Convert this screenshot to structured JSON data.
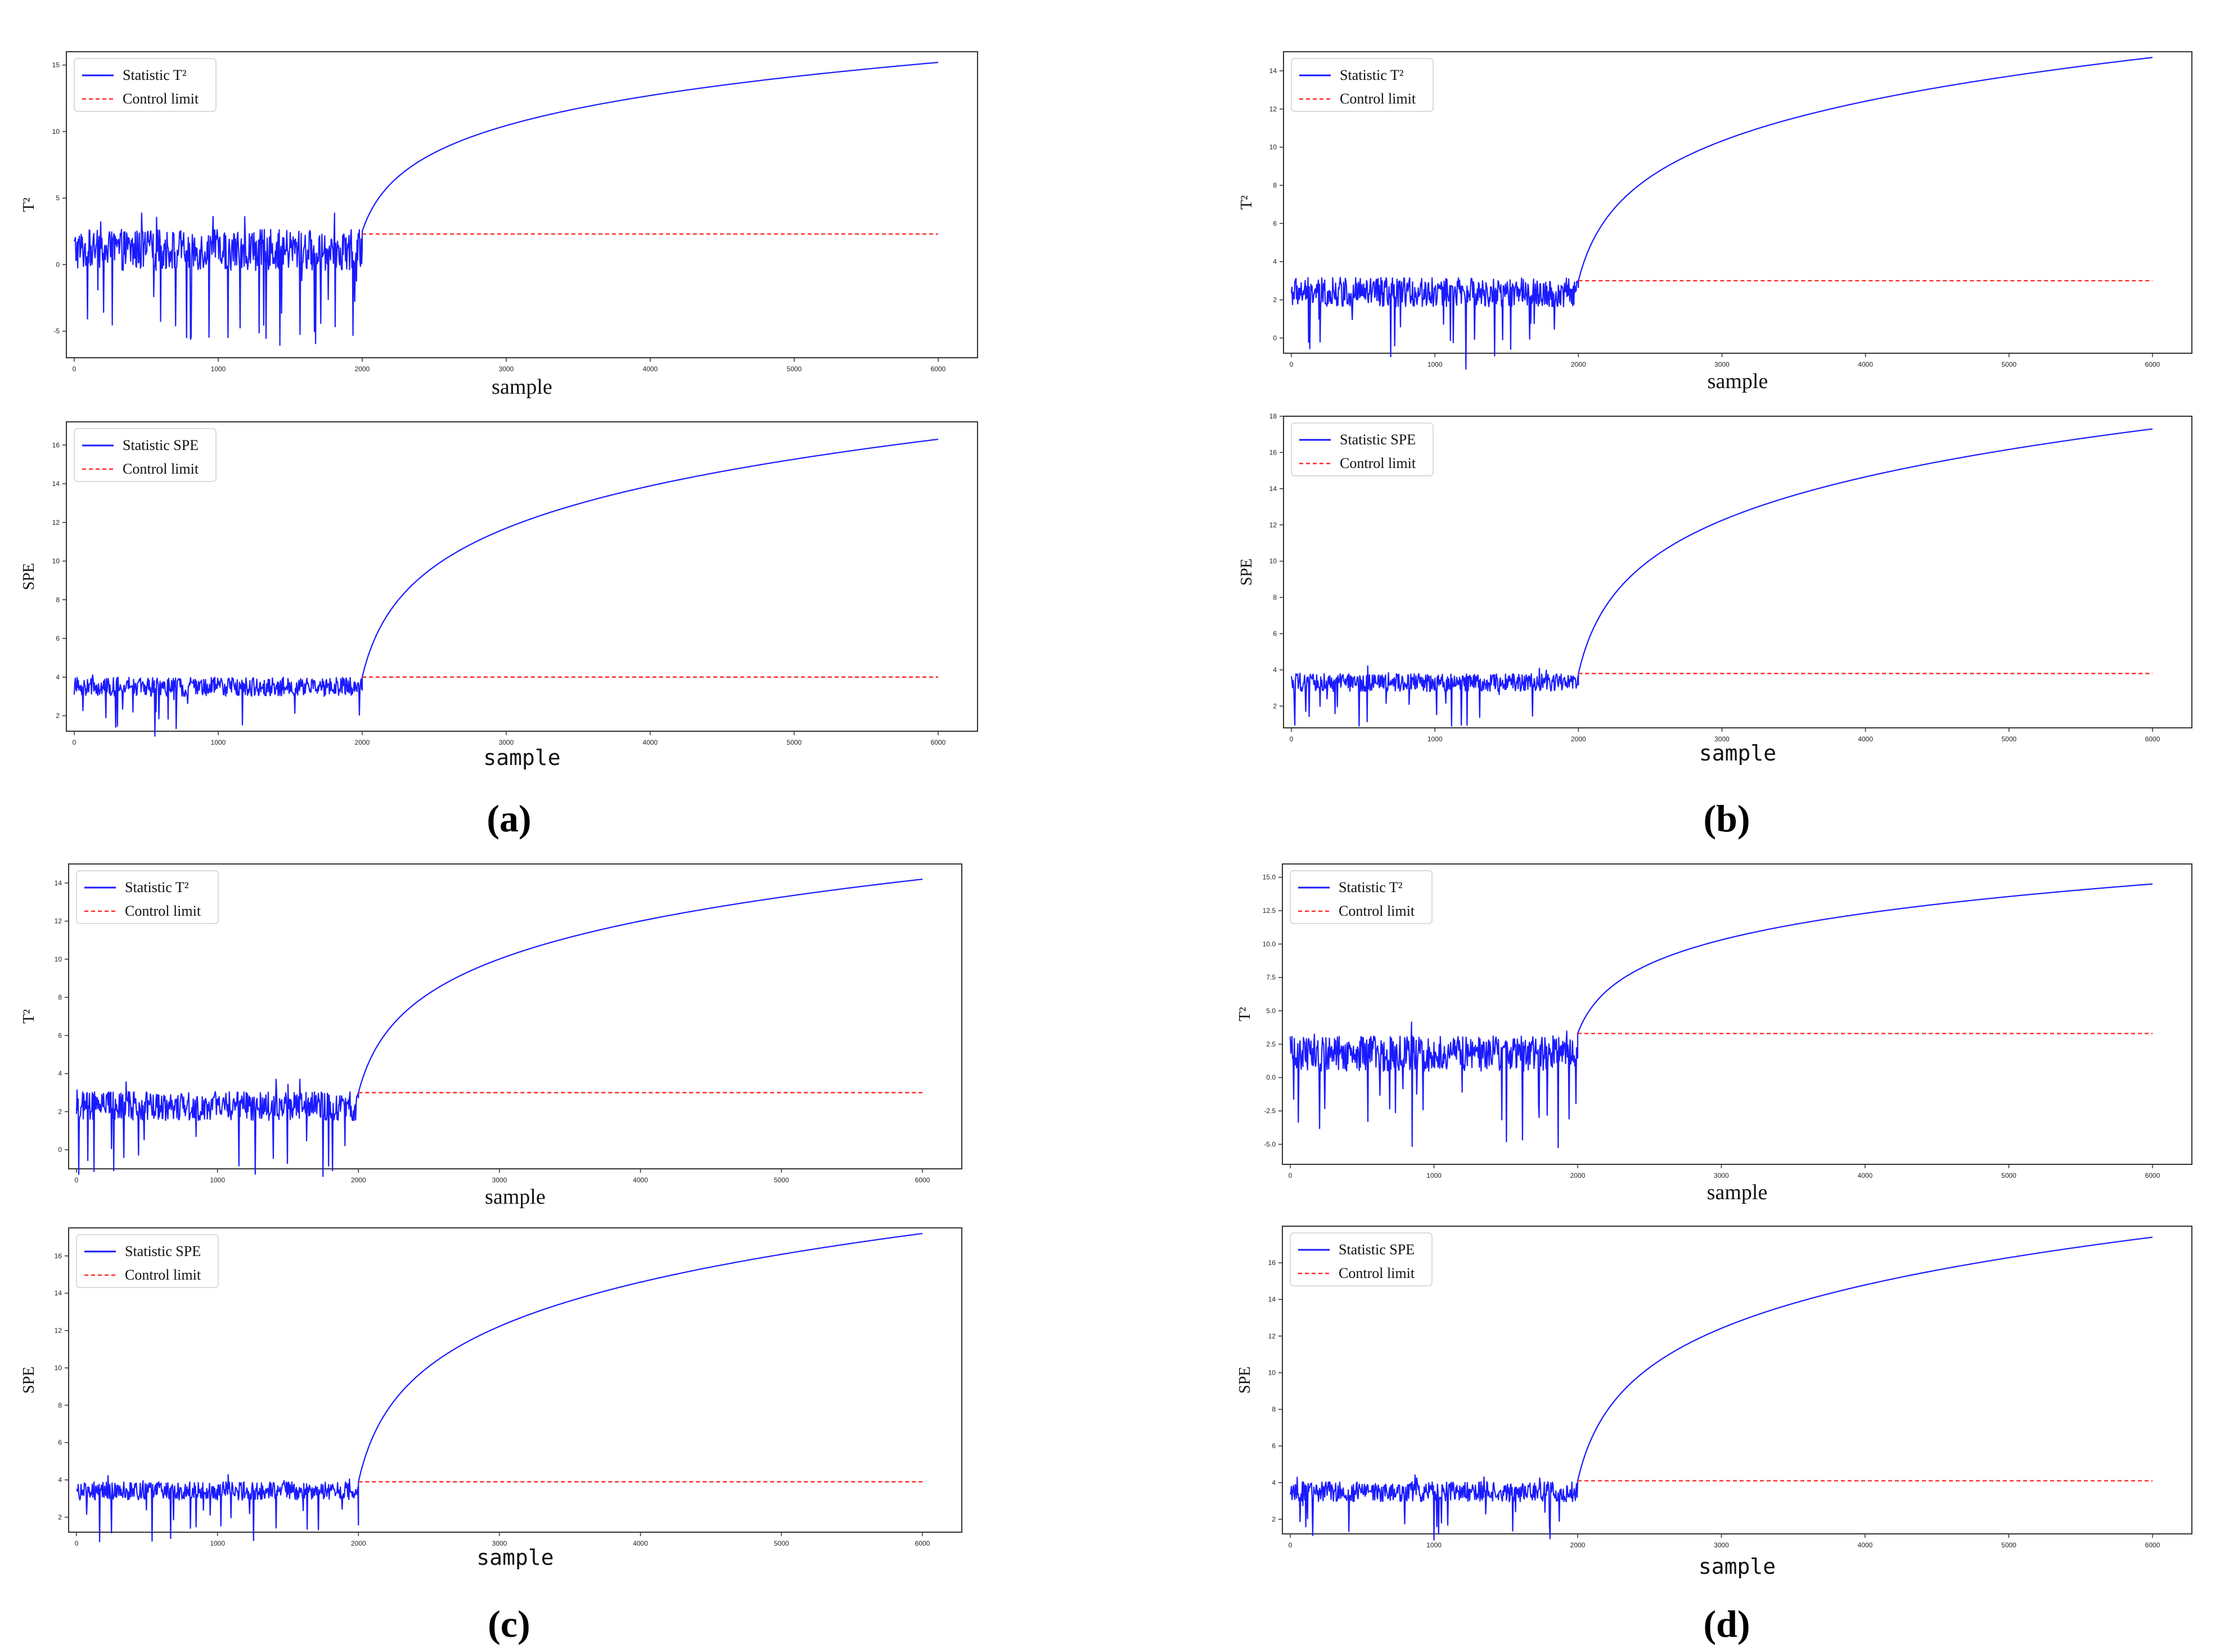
{
  "figure_labels": [
    "(a)",
    "(b)",
    "(c)",
    "(d)"
  ],
  "colors": {
    "statistic": "#1a1aff",
    "control": "#ff2a2a",
    "axis": "#333333",
    "background": "#ffffff"
  },
  "chart_data": [
    {
      "panel": "a",
      "type": "line",
      "title": "",
      "xlabel": "sample",
      "ylabel": "T²",
      "xlim": [
        0,
        6000
      ],
      "ylim": [
        -7,
        16
      ],
      "xticks": [
        0,
        1000,
        2000,
        3000,
        4000,
        5000,
        6000
      ],
      "yticks": [
        -5,
        0,
        5,
        10,
        15
      ],
      "legend_position": "upper-left",
      "grid": false,
      "series": [
        {
          "name": "Statistic T²",
          "style": "solid",
          "generator": "noisy-rise",
          "change_point": 2000,
          "noise_mean": 1.1,
          "noise_amplitude": 2.8,
          "start_value": 2.5,
          "end_value": 15.2
        },
        {
          "name": "Control limit",
          "style": "dashed",
          "x": [
            2000,
            6000
          ],
          "y": [
            2.3,
            2.3
          ]
        }
      ]
    },
    {
      "panel": "a",
      "type": "line",
      "title": "",
      "xlabel": "sample",
      "ylabel": "SPE",
      "xlim": [
        0,
        6000
      ],
      "ylim": [
        1.2,
        17.2
      ],
      "xticks": [
        0,
        1000,
        2000,
        3000,
        4000,
        5000,
        6000
      ],
      "yticks": [
        2,
        4,
        6,
        8,
        10,
        12,
        14,
        16
      ],
      "legend_position": "upper-left",
      "grid": false,
      "series": [
        {
          "name": "Statistic SPE",
          "style": "solid",
          "generator": "noisy-rise",
          "change_point": 2000,
          "noise_mean": 3.5,
          "noise_amplitude": 0.9,
          "start_value": 4.0,
          "end_value": 16.3
        },
        {
          "name": "Control limit",
          "style": "dashed",
          "x": [
            2000,
            6000
          ],
          "y": [
            4.0,
            4.0
          ]
        }
      ]
    },
    {
      "panel": "b",
      "type": "line",
      "title": "",
      "xlabel": "sample",
      "ylabel": "T²",
      "xlim": [
        0,
        6000
      ],
      "ylim": [
        -0.8,
        15
      ],
      "xticks": [
        0,
        1000,
        2000,
        3000,
        4000,
        5000,
        6000
      ],
      "yticks": [
        0,
        2,
        4,
        6,
        8,
        10,
        12,
        14
      ],
      "legend_position": "upper-left",
      "grid": false,
      "series": [
        {
          "name": "Statistic T²",
          "style": "solid",
          "generator": "noisy-rise",
          "change_point": 2000,
          "noise_mean": 2.4,
          "noise_amplitude": 1.4,
          "start_value": 3.0,
          "end_value": 14.7
        },
        {
          "name": "Control limit",
          "style": "dashed",
          "x": [
            2000,
            6000
          ],
          "y": [
            3.0,
            3.0
          ]
        }
      ]
    },
    {
      "panel": "b",
      "type": "line",
      "title": "",
      "xlabel": "sample",
      "ylabel": "SPE",
      "xlim": [
        0,
        6000
      ],
      "ylim": [
        0.8,
        18
      ],
      "xticks": [
        0,
        1000,
        2000,
        3000,
        4000,
        5000,
        6000
      ],
      "yticks": [
        2,
        4,
        6,
        8,
        10,
        12,
        14,
        16,
        18
      ],
      "legend_position": "upper-left",
      "grid": false,
      "series": [
        {
          "name": "Statistic SPE",
          "style": "solid",
          "generator": "noisy-rise",
          "change_point": 2000,
          "noise_mean": 3.3,
          "noise_amplitude": 0.9,
          "start_value": 3.8,
          "end_value": 17.3
        },
        {
          "name": "Control limit",
          "style": "dashed",
          "x": [
            2000,
            6000
          ],
          "y": [
            3.8,
            3.8
          ]
        }
      ]
    },
    {
      "panel": "c",
      "type": "line",
      "title": "",
      "xlabel": "sample",
      "ylabel": "T²",
      "xlim": [
        0,
        6000
      ],
      "ylim": [
        -1,
        15
      ],
      "xticks": [
        0,
        1000,
        2000,
        3000,
        4000,
        5000,
        6000
      ],
      "yticks": [
        0,
        2,
        4,
        6,
        8,
        10,
        12,
        14
      ],
      "legend_position": "upper-left",
      "grid": false,
      "series": [
        {
          "name": "Statistic T²",
          "style": "solid",
          "generator": "noisy-rise",
          "change_point": 2000,
          "noise_mean": 2.3,
          "noise_amplitude": 1.4,
          "start_value": 3.0,
          "end_value": 14.2
        },
        {
          "name": "Control limit",
          "style": "dashed",
          "x": [
            2000,
            6000
          ],
          "y": [
            3.0,
            3.0
          ]
        }
      ]
    },
    {
      "panel": "c",
      "type": "line",
      "title": "",
      "xlabel": "sample",
      "ylabel": "SPE",
      "xlim": [
        0,
        6000
      ],
      "ylim": [
        1.2,
        17.5
      ],
      "xticks": [
        0,
        1000,
        2000,
        3000,
        4000,
        5000,
        6000
      ],
      "yticks": [
        2,
        4,
        6,
        8,
        10,
        12,
        14,
        16
      ],
      "legend_position": "upper-left",
      "grid": false,
      "series": [
        {
          "name": "Statistic SPE",
          "style": "solid",
          "generator": "noisy-rise",
          "change_point": 2000,
          "noise_mean": 3.4,
          "noise_amplitude": 0.9,
          "start_value": 3.9,
          "end_value": 17.2
        },
        {
          "name": "Control limit",
          "style": "dashed",
          "x": [
            2000,
            6000
          ],
          "y": [
            3.9,
            3.9
          ]
        }
      ]
    },
    {
      "panel": "d",
      "type": "line",
      "title": "",
      "xlabel": "sample",
      "ylabel": "T²",
      "xlim": [
        0,
        6000
      ],
      "ylim": [
        -6.5,
        16
      ],
      "xticks": [
        0,
        1000,
        2000,
        3000,
        4000,
        5000,
        6000
      ],
      "yticks": [
        -5.0,
        -2.5,
        0.0,
        2.5,
        5.0,
        7.5,
        10.0,
        12.5,
        15.0
      ],
      "ytick_labels": [
        "-5.0",
        "-2.5",
        "0.0",
        "2.5",
        "5.0",
        "7.5",
        "10.0",
        "12.5",
        "15.0"
      ],
      "legend_position": "upper-left",
      "grid": false,
      "series": [
        {
          "name": "Statistic T²",
          "style": "solid",
          "generator": "noisy-rise",
          "change_point": 2000,
          "noise_mean": 1.8,
          "noise_amplitude": 2.4,
          "start_value": 3.3,
          "end_value": 14.5
        },
        {
          "name": "Control limit",
          "style": "dashed",
          "x": [
            2000,
            6000
          ],
          "y": [
            3.3,
            3.3
          ]
        }
      ]
    },
    {
      "panel": "d",
      "type": "line",
      "title": "",
      "xlabel": "sample",
      "ylabel": "SPE",
      "xlim": [
        0,
        6000
      ],
      "ylim": [
        1.2,
        18
      ],
      "xticks": [
        0,
        1000,
        2000,
        3000,
        4000,
        5000,
        6000
      ],
      "yticks": [
        2,
        4,
        6,
        8,
        10,
        12,
        14,
        16
      ],
      "legend_position": "upper-left",
      "grid": false,
      "series": [
        {
          "name": "Statistic SPE",
          "style": "solid",
          "generator": "noisy-rise",
          "change_point": 2000,
          "noise_mean": 3.5,
          "noise_amplitude": 1.0,
          "start_value": 4.1,
          "end_value": 17.4
        },
        {
          "name": "Control limit",
          "style": "dashed",
          "x": [
            2000,
            6000
          ],
          "y": [
            4.1,
            4.1
          ]
        }
      ]
    }
  ]
}
